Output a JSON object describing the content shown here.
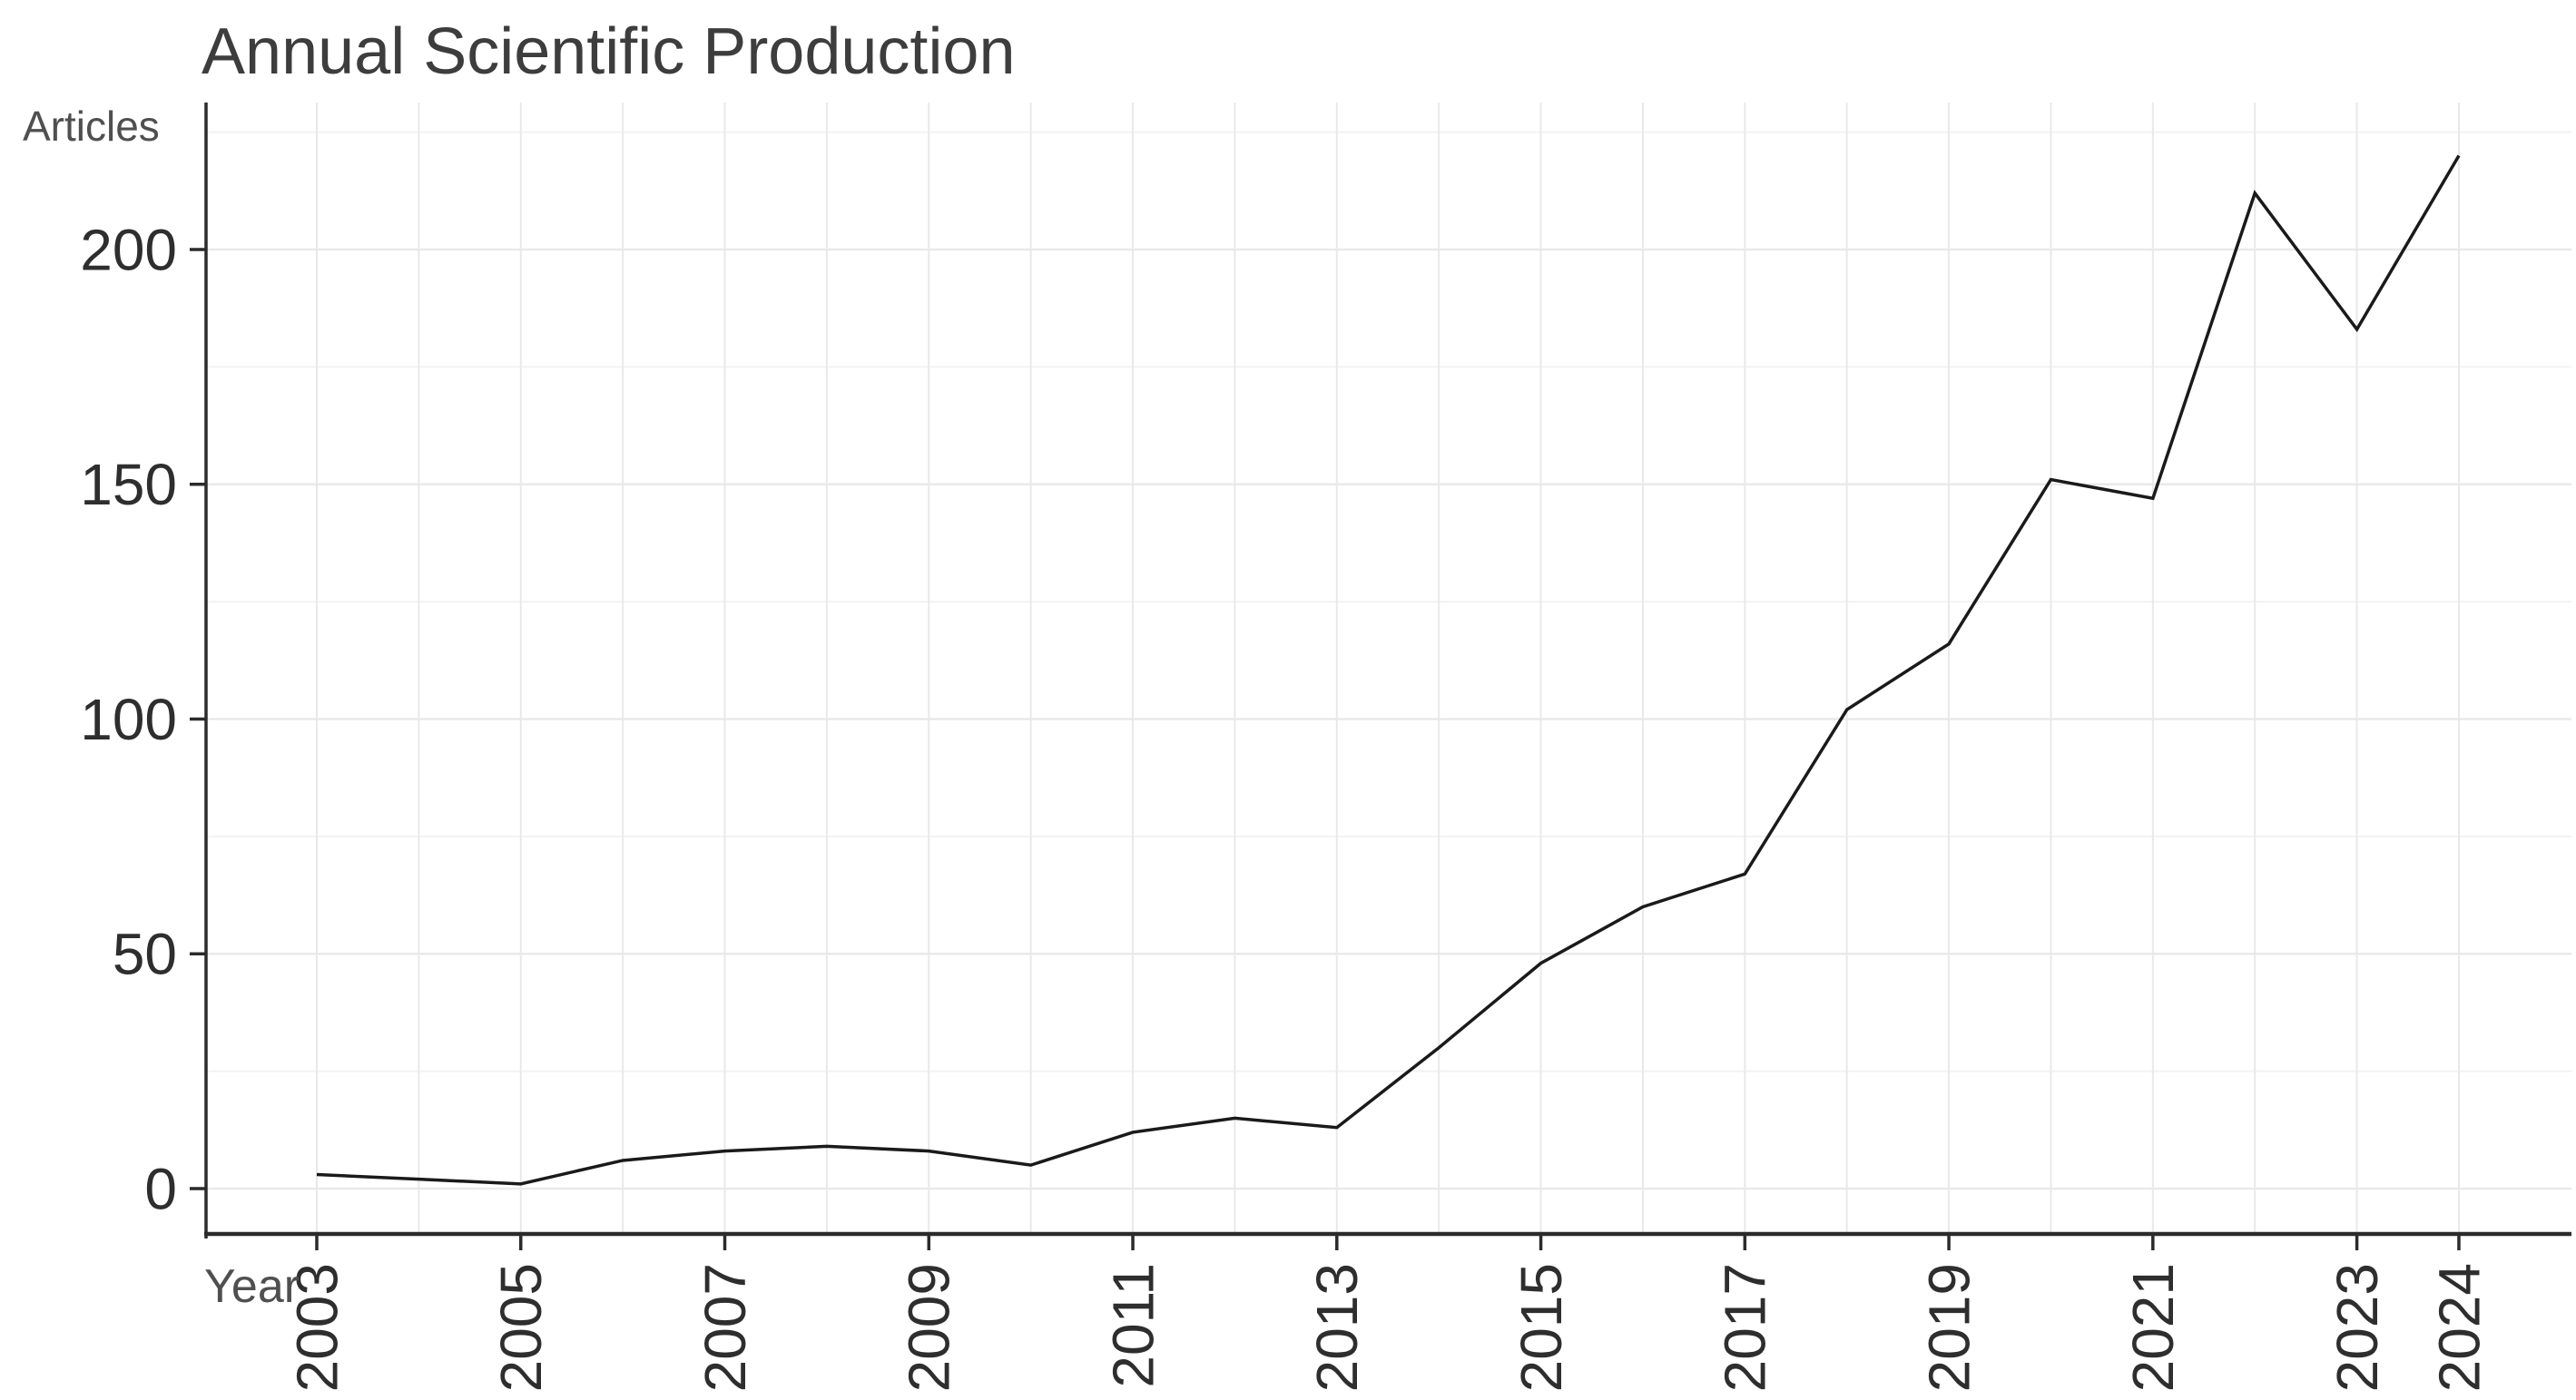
{
  "chart": {
    "title": "Annual Scientific Production",
    "y_axis_label": "Articles",
    "x_axis_label": "Year"
  },
  "colors": {
    "background": "#ffffff",
    "line": "#1a1a1a",
    "axis_line": "#2b2b2b",
    "grid_major": "#e9e9e9",
    "grid_minor": "#f2f2f2",
    "tick_label": "#2e2e2e",
    "title_text": "#3d3d3d",
    "axis_title_text": "#4f4f4f"
  },
  "chart_data": {
    "type": "line",
    "title": "Annual Scientific Production",
    "xlabel": "Year",
    "ylabel": "Articles",
    "x": [
      2003,
      2004,
      2005,
      2006,
      2007,
      2008,
      2009,
      2010,
      2011,
      2012,
      2013,
      2014,
      2015,
      2016,
      2017,
      2018,
      2019,
      2020,
      2021,
      2022,
      2023,
      2024
    ],
    "values": [
      3,
      2,
      1,
      6,
      8,
      9,
      8,
      5,
      12,
      15,
      13,
      30,
      48,
      60,
      67,
      102,
      116,
      151,
      147,
      212,
      183,
      220
    ],
    "series_name": "Articles",
    "y_major_ticks": [
      0,
      50,
      100,
      150,
      200
    ],
    "y_minor_gridlines": [
      25,
      75,
      125,
      175,
      225
    ],
    "x_labeled_ticks": [
      2003,
      2005,
      2007,
      2009,
      2011,
      2013,
      2015,
      2017,
      2019,
      2021,
      2023,
      2024
    ],
    "ylim": [
      0,
      230
    ],
    "grid": "on",
    "legend": "none",
    "x_tick_rotation_deg": 90
  }
}
